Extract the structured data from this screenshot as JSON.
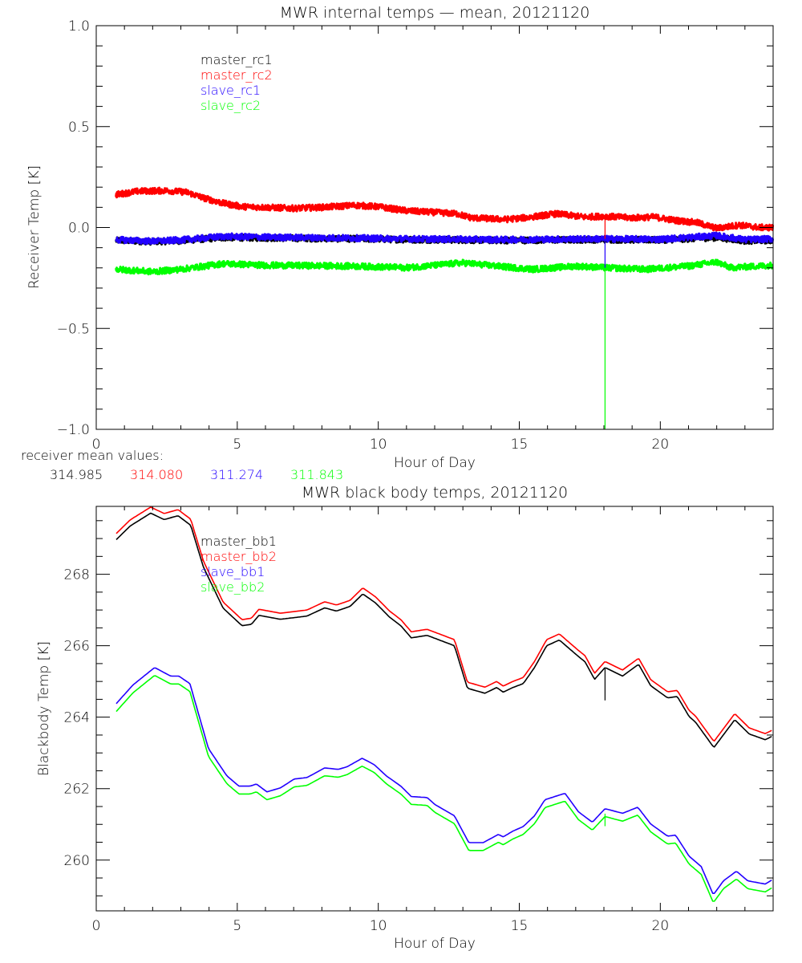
{
  "colors": {
    "black": "#000000",
    "red": "#ff0000",
    "blue": "#2200ff",
    "green": "#00ff00"
  },
  "receiver_note": {
    "label": "receiver mean values:",
    "values": [
      {
        "text": "314.985",
        "color": "#000000"
      },
      {
        "text": "314.080",
        "color": "#ff0000"
      },
      {
        "text": "311.274",
        "color": "#2200ff"
      },
      {
        "text": "311.843",
        "color": "#00ff00"
      }
    ]
  },
  "chart_data": [
    {
      "type": "line",
      "title": "MWR internal temps — mean, 20121120",
      "xlabel": "Hour of Day",
      "ylabel": "Receiver Temp [K]",
      "xlim": [
        0,
        24
      ],
      "ylim": [
        -1.0,
        1.0
      ],
      "xticks": [
        0,
        5,
        10,
        15,
        20
      ],
      "xtick_labels": [
        "0",
        "5",
        "10",
        "15",
        "20"
      ],
      "yticks": [
        -1.0,
        -0.5,
        0.0,
        0.5,
        1.0
      ],
      "ytick_labels": [
        "−1.0",
        "−0.5",
        "0.0",
        "0.5",
        "1.0"
      ],
      "grid": false,
      "legend_position": "top-left",
      "noisy": true,
      "series": [
        {
          "name": "master_rc1",
          "color": "#000000",
          "x": [
            0.7,
            2,
            3,
            4.5,
            6,
            9,
            11,
            14.5,
            18,
            20,
            22,
            23,
            24
          ],
          "y": [
            -0.064,
            -0.07,
            -0.066,
            -0.05,
            -0.052,
            -0.056,
            -0.06,
            -0.064,
            -0.06,
            -0.062,
            -0.05,
            -0.066,
            -0.064
          ]
        },
        {
          "name": "master_rc2",
          "color": "#ff0000",
          "x": [
            0.7,
            1.5,
            2.5,
            3.2,
            3.8,
            4.5,
            5.2,
            6,
            7,
            8,
            9.2,
            10,
            11,
            12,
            12.8,
            13.3,
            14.5,
            15.2,
            16.3,
            17.3,
            18,
            19,
            19.8,
            20.5,
            21.3,
            22,
            22.8,
            23.5,
            24
          ],
          "y": [
            0.163,
            0.18,
            0.183,
            0.175,
            0.147,
            0.12,
            0.103,
            0.1,
            0.095,
            0.1,
            0.11,
            0.103,
            0.083,
            0.075,
            0.068,
            0.048,
            0.04,
            0.048,
            0.068,
            0.052,
            0.056,
            0.048,
            0.052,
            0.036,
            0.024,
            -0.004,
            0.012,
            0.0,
            0.0
          ]
        },
        {
          "name": "slave_rc1",
          "color": "#2200ff",
          "x": [
            0.7,
            2,
            3,
            4.5,
            6,
            9,
            11,
            14.5,
            18,
            20,
            22,
            23,
            24
          ],
          "y": [
            -0.06,
            -0.068,
            -0.062,
            -0.044,
            -0.048,
            -0.052,
            -0.056,
            -0.06,
            -0.056,
            -0.058,
            -0.04,
            -0.06,
            -0.056
          ]
        },
        {
          "name": "slave_rc2",
          "color": "#00ff00",
          "x": [
            0.7,
            2,
            3,
            4.5,
            6,
            9,
            11,
            13,
            14.8,
            15.5,
            17,
            18,
            19.5,
            21,
            22,
            22.5,
            24
          ],
          "y": [
            -0.207,
            -0.219,
            -0.207,
            -0.179,
            -0.187,
            -0.191,
            -0.199,
            -0.175,
            -0.199,
            -0.207,
            -0.191,
            -0.199,
            -0.207,
            -0.191,
            -0.171,
            -0.199,
            -0.187
          ]
        }
      ],
      "spikes": [
        {
          "x": 18.04,
          "from": 0.056,
          "to": -0.06,
          "color": "#ff0000"
        },
        {
          "x": 18.04,
          "from": -0.056,
          "to": -0.2,
          "color": "#2200ff"
        },
        {
          "x": 18.04,
          "from": -0.2,
          "to": -1.0,
          "color": "#00ff00"
        }
      ]
    },
    {
      "type": "line",
      "title": "MWR black body temps, 20121120",
      "xlabel": "Hour of Day",
      "ylabel": "Blackbody Temp [K]",
      "xlim": [
        0,
        24
      ],
      "ylim": [
        258.58,
        269.9
      ],
      "xticks": [
        0,
        5,
        10,
        15,
        20
      ],
      "xtick_labels": [
        "0",
        "5",
        "10",
        "15",
        "20"
      ],
      "yticks": [
        260,
        262,
        264,
        266,
        268
      ],
      "ytick_labels": [
        "260",
        "262",
        "264",
        "266",
        "268"
      ],
      "grid": false,
      "legend_position": "top-left",
      "noisy": false,
      "series": [
        {
          "name": "master_bb1",
          "color": "#000000",
          "x": [
            0.71,
            1.2,
            1.93,
            2.41,
            2.9,
            3.35,
            3.8,
            4.5,
            5.17,
            5.5,
            5.77,
            6.53,
            7.47,
            8.1,
            8.52,
            9.0,
            9.45,
            9.9,
            10.4,
            10.8,
            11.17,
            11.73,
            12.7,
            13.16,
            13.78,
            14.2,
            14.43,
            14.77,
            15.14,
            15.54,
            15.97,
            16.42,
            17.05,
            17.33,
            17.67,
            18.04,
            18.66,
            19.23,
            19.66,
            20.26,
            20.6,
            21.02,
            21.25,
            21.9,
            22.64,
            23.15,
            23.72,
            23.95
          ],
          "y": [
            268.97,
            269.35,
            269.71,
            269.53,
            269.64,
            269.37,
            268.2,
            267.05,
            266.56,
            266.6,
            266.85,
            266.74,
            266.83,
            267.06,
            266.97,
            267.1,
            267.45,
            267.2,
            266.8,
            266.56,
            266.22,
            266.29,
            266.0,
            264.81,
            264.67,
            264.83,
            264.7,
            264.83,
            264.94,
            265.39,
            266.0,
            266.16,
            265.73,
            265.55,
            265.06,
            265.39,
            265.15,
            265.48,
            264.88,
            264.54,
            264.58,
            264.02,
            263.86,
            263.15,
            263.93,
            263.53,
            263.37,
            263.46
          ]
        },
        {
          "name": "master_bb2",
          "color": "#ff0000",
          "x": [
            0.71,
            1.2,
            1.93,
            2.41,
            2.9,
            3.35,
            3.8,
            4.5,
            5.17,
            5.5,
            5.77,
            6.53,
            7.47,
            8.1,
            8.52,
            9.0,
            9.45,
            9.9,
            10.4,
            10.8,
            11.17,
            11.73,
            12.7,
            13.16,
            13.78,
            14.2,
            14.43,
            14.77,
            15.14,
            15.54,
            15.97,
            16.42,
            17.05,
            17.33,
            17.67,
            18.04,
            18.66,
            19.23,
            19.66,
            20.26,
            20.6,
            21.02,
            21.25,
            21.9,
            22.64,
            23.15,
            23.72,
            23.95
          ],
          "y": [
            269.14,
            269.52,
            269.88,
            269.7,
            269.81,
            269.54,
            268.37,
            267.22,
            266.73,
            266.77,
            267.02,
            266.91,
            267.0,
            267.23,
            267.14,
            267.27,
            267.62,
            267.37,
            266.97,
            266.73,
            266.39,
            266.46,
            266.17,
            264.98,
            264.84,
            265.0,
            264.87,
            265.0,
            265.11,
            265.56,
            266.17,
            266.33,
            265.9,
            265.72,
            265.23,
            265.56,
            265.32,
            265.65,
            265.05,
            264.71,
            264.75,
            264.19,
            264.03,
            263.32,
            264.1,
            263.7,
            263.54,
            263.63
          ]
        },
        {
          "name": "slave_bb1",
          "color": "#2200ff",
          "x": [
            0.71,
            1.3,
            2.07,
            2.64,
            2.93,
            3.32,
            3.98,
            4.63,
            5.06,
            5.45,
            5.68,
            6.05,
            6.53,
            7.02,
            7.47,
            8.1,
            8.58,
            8.89,
            9.43,
            9.86,
            10.28,
            10.8,
            11.17,
            11.73,
            12.02,
            12.7,
            13.21,
            13.72,
            14.26,
            14.43,
            14.77,
            15.14,
            15.54,
            15.91,
            16.62,
            17.1,
            17.59,
            18.04,
            18.66,
            19.2,
            19.66,
            20.26,
            20.54,
            21.02,
            21.45,
            21.88,
            22.24,
            22.7,
            23.1,
            23.72,
            23.95
          ],
          "y": [
            264.38,
            264.9,
            265.39,
            265.15,
            265.15,
            264.94,
            263.12,
            262.36,
            262.07,
            262.07,
            262.13,
            261.91,
            262.02,
            262.27,
            262.31,
            262.58,
            262.54,
            262.61,
            262.85,
            262.67,
            262.36,
            262.07,
            261.78,
            261.75,
            261.55,
            261.24,
            260.49,
            260.49,
            260.72,
            260.65,
            260.81,
            260.94,
            261.24,
            261.69,
            261.87,
            261.35,
            261.06,
            261.44,
            261.31,
            261.48,
            261.01,
            260.67,
            260.7,
            260.11,
            259.82,
            259.03,
            259.42,
            259.69,
            259.42,
            259.33,
            259.44
          ]
        },
        {
          "name": "slave_bb2",
          "color": "#00ff00",
          "x": [
            0.71,
            1.3,
            2.07,
            2.64,
            2.93,
            3.32,
            3.98,
            4.63,
            5.06,
            5.45,
            5.68,
            6.05,
            6.53,
            7.02,
            7.47,
            8.1,
            8.58,
            8.89,
            9.43,
            9.86,
            10.28,
            10.8,
            11.17,
            11.73,
            12.02,
            12.7,
            13.21,
            13.72,
            14.26,
            14.43,
            14.77,
            15.14,
            15.54,
            15.91,
            16.62,
            17.1,
            17.59,
            18.04,
            18.66,
            19.2,
            19.66,
            20.26,
            20.54,
            21.02,
            21.45,
            21.88,
            22.24,
            22.7,
            23.1,
            23.72,
            23.95
          ],
          "y": [
            264.16,
            264.68,
            265.17,
            264.93,
            264.93,
            264.72,
            262.9,
            262.14,
            261.85,
            261.85,
            261.91,
            261.69,
            261.8,
            262.05,
            262.09,
            262.36,
            262.32,
            262.39,
            262.63,
            262.45,
            262.14,
            261.85,
            261.56,
            261.53,
            261.33,
            261.02,
            260.27,
            260.27,
            260.5,
            260.43,
            260.59,
            260.72,
            261.02,
            261.47,
            261.65,
            261.13,
            260.84,
            261.22,
            261.09,
            261.26,
            260.79,
            260.45,
            260.48,
            259.89,
            259.6,
            258.81,
            259.2,
            259.47,
            259.2,
            259.11,
            259.22
          ]
        }
      ],
      "spikes": [
        {
          "x": 18.04,
          "from": 265.39,
          "to": 264.47,
          "color": "#000000"
        },
        {
          "x": 18.04,
          "from": 261.3,
          "to": 260.95,
          "color": "#00ff00"
        }
      ]
    }
  ]
}
